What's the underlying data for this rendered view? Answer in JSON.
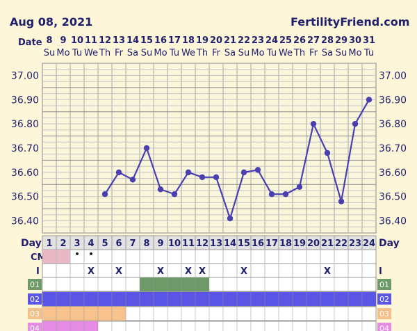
{
  "header": {
    "date": "Aug 08, 2021",
    "site": "FertilityFriend.com",
    "date_label": "Date"
  },
  "dates": [
    "8",
    "9",
    "10",
    "11",
    "12",
    "13",
    "14",
    "15",
    "16",
    "17",
    "18",
    "19",
    "20",
    "21",
    "22",
    "23",
    "24",
    "25",
    "26",
    "27",
    "28",
    "29",
    "30",
    "31"
  ],
  "weekdays": [
    "Su",
    "Mo",
    "Tu",
    "We",
    "Th",
    "Fr",
    "Sa",
    "Su",
    "Mo",
    "Tu",
    "We",
    "Th",
    "Fr",
    "Sa",
    "Su",
    "Mo",
    "Tu",
    "We",
    "Th",
    "Fr",
    "Sa",
    "Su",
    "Mo",
    "Tu"
  ],
  "labels": {
    "day": "Day",
    "cm": "CM",
    "i": "I"
  },
  "cycle_days": [
    "1",
    "2",
    "3",
    "4",
    "5",
    "6",
    "7",
    "8",
    "9",
    "10",
    "11",
    "12",
    "13",
    "14",
    "15",
    "16",
    "17",
    "18",
    "19",
    "20",
    "21",
    "22",
    "23",
    "24"
  ],
  "cm_row": {
    "markers": [
      "",
      "",
      "•",
      "•",
      "",
      "",
      "",
      "",
      "",
      "",
      "",
      "",
      "",
      "",
      "",
      "",
      "",
      "",
      "",
      "",
      "",
      "",
      "",
      ""
    ],
    "pink_days": [
      1,
      2
    ]
  },
  "i_row": [
    "",
    "",
    "",
    "X",
    "",
    "X",
    "",
    "",
    "X",
    "",
    "X",
    "X",
    "",
    "",
    "X",
    "",
    "",
    "",
    "",
    "",
    "X",
    "",
    "",
    ""
  ],
  "bars": [
    {
      "label": "01",
      "color": "#6e9a6a",
      "days": [
        8,
        9,
        10,
        11,
        12
      ]
    },
    {
      "label": "02",
      "color": "#5b55e6",
      "days": [
        1,
        2,
        3,
        4,
        5,
        6,
        7,
        8,
        9,
        10,
        11,
        12,
        13,
        14,
        15,
        16,
        17,
        18,
        19,
        20,
        21,
        22,
        23,
        24
      ]
    },
    {
      "label": "03",
      "color": "#f7c28e",
      "days": [
        1,
        2,
        3,
        4,
        5,
        6
      ]
    },
    {
      "label": "04",
      "color": "#e58be3",
      "days": [
        1,
        2,
        3,
        4
      ]
    }
  ],
  "bar_label_colors": {
    "01": "#6e9a6a",
    "02": "#5b55e6",
    "03": "#f4c08a",
    "04": "#e58be3"
  },
  "chart_data": {
    "type": "line",
    "x": [
      5,
      6,
      7,
      8,
      9,
      10,
      11,
      12,
      13,
      14,
      15,
      16,
      17,
      18,
      19,
      20,
      21,
      22,
      23,
      24
    ],
    "values": [
      36.51,
      36.6,
      36.57,
      36.7,
      36.53,
      36.51,
      36.6,
      36.58,
      36.58,
      36.41,
      36.6,
      36.61,
      36.51,
      36.51,
      36.54,
      36.8,
      36.68,
      36.48,
      36.8,
      36.9
    ],
    "xlabel": "Day",
    "ylim": [
      36.35,
      37.05
    ],
    "yticks": [
      "36.40",
      "36.50",
      "36.60",
      "36.70",
      "36.80",
      "36.90",
      "37.00"
    ],
    "line_color": "#4a3fb0",
    "grid": true
  }
}
